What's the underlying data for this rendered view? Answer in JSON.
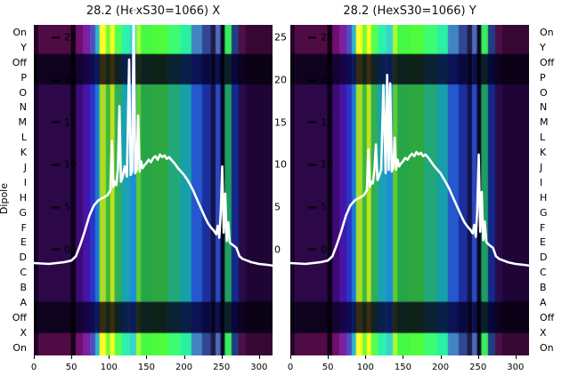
{
  "figure": {
    "bg": "#ffffff",
    "dipole_label": "Dipole",
    "row_labels": [
      "On",
      "Y",
      "Off",
      "P",
      "O",
      "N",
      "M",
      "L",
      "K",
      "J",
      "I",
      "H",
      "G",
      "F",
      "E",
      "D",
      "C",
      "B",
      "A",
      "Off",
      "X",
      "On"
    ]
  },
  "chart_data": [
    {
      "type": "heatmap",
      "title": "28.2 (HexS30=1066) X",
      "ylabel": "Dipole",
      "x_ticks": [
        0,
        50,
        100,
        150,
        200,
        250,
        300
      ],
      "y_ticks": [
        25,
        20,
        15,
        10,
        5,
        0
      ],
      "x_domain": [
        0,
        318
      ],
      "y_domain": [
        -12.5,
        26.5
      ],
      "row_labels": [
        "On",
        "Y",
        "Off",
        "P",
        "O",
        "N",
        "M",
        "L",
        "K",
        "J",
        "I",
        "H",
        "G",
        "F",
        "E",
        "D",
        "C",
        "B",
        "A",
        "Off",
        "X",
        "On"
      ],
      "row_bands": [
        [
          0.0,
          0.088,
          "bright"
        ],
        [
          0.088,
          0.18,
          "dark"
        ],
        [
          0.18,
          0.838,
          "main"
        ],
        [
          0.838,
          0.932,
          "dark"
        ],
        [
          0.932,
          1.0,
          "bright"
        ]
      ],
      "stripes": [
        [
          0.0,
          0.02,
          "#15002b"
        ],
        [
          0.02,
          0.155,
          "#2c0848"
        ],
        [
          0.155,
          0.175,
          "#0a0018"
        ],
        [
          0.175,
          0.205,
          "#3f0a72"
        ],
        [
          0.205,
          0.235,
          "#4614a8"
        ],
        [
          0.235,
          0.258,
          "#2a35c8"
        ],
        [
          0.258,
          0.275,
          "#1779d8"
        ],
        [
          0.275,
          0.302,
          "#a8dc28"
        ],
        [
          0.302,
          0.32,
          "#3cb83c"
        ],
        [
          0.32,
          0.338,
          "#c2e41c"
        ],
        [
          0.338,
          0.368,
          "#2fae58"
        ],
        [
          0.368,
          0.4,
          "#18a2b4"
        ],
        [
          0.4,
          0.43,
          "#1e8ed2"
        ],
        [
          0.43,
          0.448,
          "#5ecc2e"
        ],
        [
          0.448,
          0.5,
          "#27a648"
        ],
        [
          0.5,
          0.56,
          "#2ca83e"
        ],
        [
          0.56,
          0.615,
          "#22a878"
        ],
        [
          0.615,
          0.66,
          "#17a0ac"
        ],
        [
          0.66,
          0.705,
          "#2458cc"
        ],
        [
          0.705,
          0.74,
          "#1b2f9e"
        ],
        [
          0.74,
          0.762,
          "#10134e"
        ],
        [
          0.762,
          0.782,
          "#2a48c4"
        ],
        [
          0.782,
          0.8,
          "#070722"
        ],
        [
          0.8,
          0.828,
          "#1f9e62"
        ],
        [
          0.828,
          0.858,
          "#13288a"
        ],
        [
          0.858,
          0.888,
          "#2a0a4a"
        ],
        [
          0.888,
          1.0,
          "#1e0536"
        ]
      ],
      "line": {
        "color": "#ffffff",
        "x": [
          0,
          20,
          40,
          50,
          56,
          62,
          68,
          74,
          80,
          86,
          92,
          98,
          102,
          104,
          106,
          108,
          110,
          112,
          114,
          116,
          118,
          121,
          124,
          127,
          129,
          131,
          133,
          135,
          137,
          139,
          141,
          143,
          145,
          147,
          150,
          153,
          156,
          159,
          162,
          165,
          168,
          171,
          174,
          177,
          180,
          184,
          188,
          192,
          196,
          200,
          204,
          208,
          212,
          216,
          220,
          224,
          228,
          232,
          236,
          240,
          243,
          245,
          247,
          249,
          251,
          253,
          255,
          257,
          259,
          261,
          264,
          267,
          270,
          274,
          278,
          284,
          290,
          300,
          310,
          318
        ],
        "y": [
          -1.6,
          -1.7,
          -1.5,
          -1.3,
          -0.8,
          0.6,
          2.2,
          4.0,
          5.2,
          5.8,
          6.1,
          6.4,
          7.0,
          12.8,
          7.4,
          8.0,
          7.6,
          9.6,
          16.9,
          8.0,
          8.4,
          9.8,
          8.6,
          22.4,
          8.8,
          9.2,
          28.5,
          9.0,
          9.4,
          15.8,
          9.2,
          10.4,
          9.6,
          9.9,
          10.2,
          10.6,
          10.3,
          10.8,
          11.0,
          10.6,
          11.2,
          10.9,
          11.1,
          10.7,
          10.9,
          10.5,
          10.1,
          9.6,
          9.2,
          8.8,
          8.3,
          7.7,
          7.0,
          6.2,
          5.4,
          4.6,
          3.8,
          3.1,
          2.6,
          2.2,
          1.8,
          2.8,
          1.4,
          4.2,
          9.8,
          2.0,
          6.6,
          1.0,
          3.2,
          0.8,
          0.6,
          0.4,
          0.2,
          -0.8,
          -1.1,
          -1.3,
          -1.5,
          -1.7,
          -1.8,
          -1.9
        ]
      }
    },
    {
      "type": "heatmap",
      "title": "28.2 (HexS30=1066) Y",
      "x_ticks": [
        0,
        50,
        100,
        150,
        200,
        250,
        300
      ],
      "y_ticks": [
        25,
        20,
        15,
        10,
        5,
        0
      ],
      "x_domain": [
        0,
        318
      ],
      "y_domain": [
        -12.5,
        26.5
      ],
      "row_labels": [
        "On",
        "Y",
        "Off",
        "P",
        "O",
        "N",
        "M",
        "L",
        "K",
        "J",
        "I",
        "H",
        "G",
        "F",
        "E",
        "D",
        "C",
        "B",
        "A",
        "Off",
        "X",
        "On"
      ],
      "row_bands": [
        [
          0.0,
          0.088,
          "bright"
        ],
        [
          0.088,
          0.18,
          "dark"
        ],
        [
          0.18,
          0.838,
          "main"
        ],
        [
          0.838,
          0.932,
          "dark"
        ],
        [
          0.932,
          1.0,
          "bright"
        ]
      ],
      "stripes": [
        [
          0.0,
          0.02,
          "#15002b"
        ],
        [
          0.02,
          0.155,
          "#2c0848"
        ],
        [
          0.155,
          0.175,
          "#0a0018"
        ],
        [
          0.175,
          0.205,
          "#3f0a72"
        ],
        [
          0.205,
          0.235,
          "#4614a8"
        ],
        [
          0.235,
          0.258,
          "#2a35c8"
        ],
        [
          0.258,
          0.275,
          "#1779d8"
        ],
        [
          0.275,
          0.302,
          "#a8dc28"
        ],
        [
          0.302,
          0.32,
          "#3cb83c"
        ],
        [
          0.32,
          0.338,
          "#c2e41c"
        ],
        [
          0.338,
          0.368,
          "#2fae58"
        ],
        [
          0.368,
          0.4,
          "#18a2b4"
        ],
        [
          0.4,
          0.43,
          "#1e8ed2"
        ],
        [
          0.43,
          0.448,
          "#5ecc2e"
        ],
        [
          0.448,
          0.5,
          "#27a648"
        ],
        [
          0.5,
          0.56,
          "#2ca83e"
        ],
        [
          0.56,
          0.615,
          "#22a878"
        ],
        [
          0.615,
          0.66,
          "#17a0ac"
        ],
        [
          0.66,
          0.705,
          "#2458cc"
        ],
        [
          0.705,
          0.74,
          "#1b2f9e"
        ],
        [
          0.74,
          0.762,
          "#10134e"
        ],
        [
          0.762,
          0.782,
          "#2a48c4"
        ],
        [
          0.782,
          0.8,
          "#070722"
        ],
        [
          0.8,
          0.828,
          "#1f9e62"
        ],
        [
          0.828,
          0.858,
          "#13288a"
        ],
        [
          0.858,
          0.888,
          "#2a0a4a"
        ],
        [
          0.888,
          1.0,
          "#1e0536"
        ]
      ],
      "line": {
        "color": "#ffffff",
        "x": [
          0,
          20,
          40,
          50,
          56,
          62,
          68,
          74,
          80,
          86,
          92,
          98,
          102,
          104,
          106,
          108,
          110,
          112,
          114,
          116,
          118,
          121,
          124,
          127,
          129,
          131,
          133,
          135,
          137,
          139,
          141,
          143,
          145,
          147,
          150,
          153,
          156,
          159,
          162,
          165,
          168,
          171,
          174,
          177,
          180,
          184,
          188,
          192,
          196,
          200,
          204,
          208,
          212,
          216,
          220,
          224,
          228,
          232,
          236,
          240,
          243,
          245,
          247,
          249,
          251,
          253,
          255,
          257,
          259,
          261,
          264,
          267,
          270,
          274,
          278,
          284,
          290,
          300,
          310,
          318
        ],
        "y": [
          -1.6,
          -1.7,
          -1.5,
          -1.3,
          -0.8,
          0.6,
          2.2,
          4.0,
          5.2,
          5.8,
          6.1,
          6.4,
          7.0,
          11.8,
          7.4,
          8.0,
          7.8,
          9.4,
          12.4,
          8.2,
          8.6,
          9.4,
          19.4,
          9.0,
          20.6,
          9.4,
          19.6,
          9.2,
          9.6,
          13.2,
          9.4,
          10.6,
          9.8,
          10.1,
          10.4,
          10.8,
          10.6,
          11.0,
          11.3,
          11.0,
          11.5,
          11.2,
          11.4,
          11.0,
          11.2,
          10.8,
          10.3,
          9.8,
          9.4,
          9.0,
          8.4,
          7.8,
          7.1,
          6.3,
          5.5,
          4.7,
          3.9,
          3.2,
          2.7,
          2.3,
          1.9,
          2.9,
          1.5,
          4.4,
          11.2,
          2.1,
          6.8,
          1.1,
          3.3,
          0.9,
          0.6,
          0.4,
          0.2,
          -0.8,
          -1.1,
          -1.3,
          -1.5,
          -1.7,
          -1.8,
          -1.9
        ]
      }
    }
  ]
}
